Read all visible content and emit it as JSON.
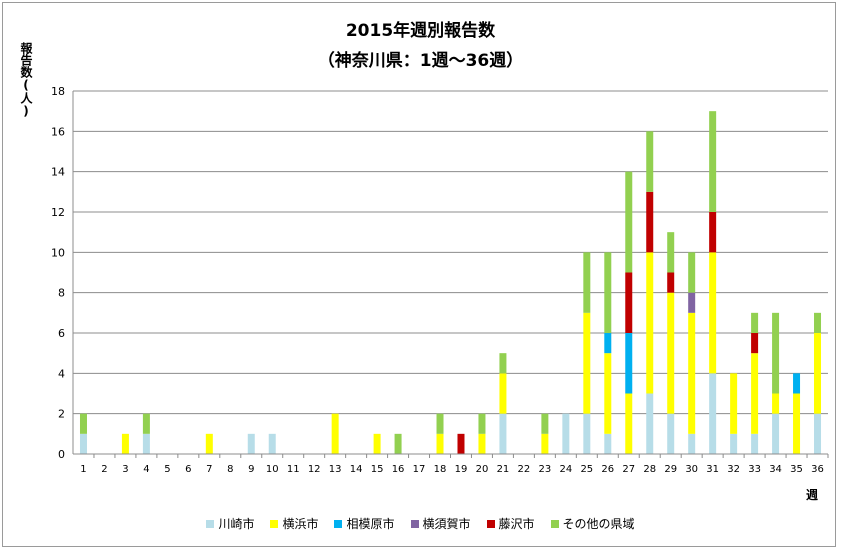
{
  "chart_data": {
    "type": "bar",
    "stacked": true,
    "title_line1": "2015年週別報告数",
    "title_line2": "（神奈川県：1週～36週）",
    "ylabel": "報告数(人)",
    "xlabel": "週",
    "ylim": [
      0,
      18
    ],
    "ytick_step": 2,
    "yticks": [
      "0",
      "2",
      "4",
      "6",
      "8",
      "10",
      "12",
      "14",
      "16",
      "18"
    ],
    "grid": true,
    "legend_position": "bottom",
    "categories": [
      "1",
      "2",
      "3",
      "4",
      "5",
      "6",
      "7",
      "8",
      "9",
      "10",
      "11",
      "12",
      "13",
      "14",
      "15",
      "16",
      "17",
      "18",
      "19",
      "20",
      "21",
      "22",
      "23",
      "24",
      "25",
      "26",
      "27",
      "28",
      "29",
      "30",
      "31",
      "32",
      "33",
      "34",
      "35",
      "36"
    ],
    "series": [
      {
        "name": "川崎市",
        "color": "#b7dde8",
        "values": [
          1,
          0,
          0,
          1,
          0,
          0,
          0,
          0,
          1,
          1,
          0,
          0,
          0,
          0,
          0,
          0,
          0,
          0,
          0,
          0,
          2,
          0,
          0,
          2,
          2,
          1,
          0,
          3,
          2,
          1,
          4,
          1,
          1,
          2,
          0,
          2
        ]
      },
      {
        "name": "横浜市",
        "color": "#ffff00",
        "values": [
          0,
          0,
          1,
          0,
          0,
          0,
          1,
          0,
          0,
          0,
          0,
          0,
          2,
          0,
          1,
          0,
          0,
          1,
          0,
          1,
          2,
          0,
          1,
          0,
          5,
          4,
          3,
          7,
          6,
          6,
          6,
          3,
          4,
          1,
          3,
          4
        ]
      },
      {
        "name": "相模原市",
        "color": "#00b0f0",
        "values": [
          0,
          0,
          0,
          0,
          0,
          0,
          0,
          0,
          0,
          0,
          0,
          0,
          0,
          0,
          0,
          0,
          0,
          0,
          0,
          0,
          0,
          0,
          0,
          0,
          0,
          1,
          3,
          0,
          0,
          0,
          0,
          0,
          0,
          0,
          1,
          0
        ]
      },
      {
        "name": "横須賀市",
        "color": "#8064a2",
        "values": [
          0,
          0,
          0,
          0,
          0,
          0,
          0,
          0,
          0,
          0,
          0,
          0,
          0,
          0,
          0,
          0,
          0,
          0,
          0,
          0,
          0,
          0,
          0,
          0,
          0,
          0,
          0,
          0,
          0,
          1,
          0,
          0,
          0,
          0,
          0,
          0
        ]
      },
      {
        "name": "藤沢市",
        "color": "#c00000",
        "values": [
          0,
          0,
          0,
          0,
          0,
          0,
          0,
          0,
          0,
          0,
          0,
          0,
          0,
          0,
          0,
          0,
          0,
          0,
          1,
          0,
          0,
          0,
          0,
          0,
          0,
          0,
          3,
          3,
          1,
          0,
          2,
          0,
          1,
          0,
          0,
          0
        ]
      },
      {
        "name": "その他の県域",
        "color": "#92d050",
        "values": [
          1,
          0,
          0,
          1,
          0,
          0,
          0,
          0,
          0,
          0,
          0,
          0,
          0,
          0,
          0,
          1,
          0,
          1,
          0,
          1,
          1,
          0,
          1,
          0,
          3,
          4,
          5,
          3,
          2,
          2,
          5,
          0,
          1,
          4,
          0,
          1
        ]
      }
    ]
  }
}
